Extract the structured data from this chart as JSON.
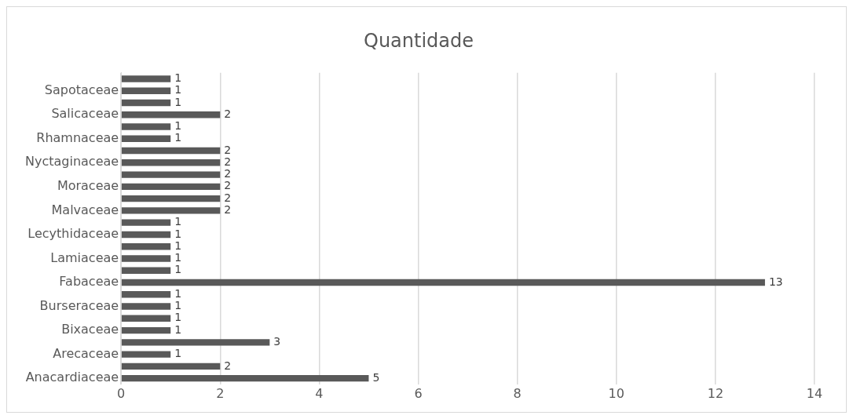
{
  "chart_data": {
    "type": "bar",
    "orientation": "horizontal",
    "title": "Quantidade",
    "categories": [
      null,
      "Sapotaceae",
      null,
      "Salicaceae",
      null,
      "Rhamnaceae",
      null,
      "Nyctaginaceae",
      null,
      "Moraceae",
      null,
      "Malvaceae",
      null,
      "Lecythidaceae",
      null,
      "Lamiaceae",
      null,
      "Fabaceae",
      null,
      "Burseraceae",
      null,
      "Bixaceae",
      null,
      "Arecaceae",
      null,
      "Anacardiaceae"
    ],
    "values": [
      1,
      1,
      1,
      2,
      1,
      1,
      2,
      2,
      2,
      2,
      2,
      2,
      1,
      1,
      1,
      1,
      1,
      13,
      1,
      1,
      1,
      1,
      3,
      1,
      2,
      5
    ],
    "color": "#595959",
    "xlim": [
      0,
      14
    ],
    "xticks": [
      0,
      2,
      4,
      6,
      8,
      10,
      12,
      14
    ],
    "grid": "x",
    "data_labels": true,
    "legend": false
  }
}
